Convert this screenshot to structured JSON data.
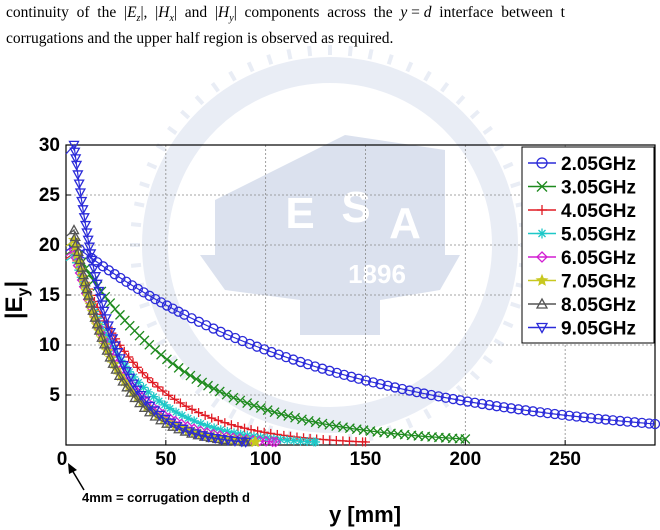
{
  "intro_text": {
    "line1": [
      {
        "t": "continuity  of  the  |",
        "i": false
      },
      {
        "t": "E",
        "i": true
      },
      {
        "t": "z",
        "i": true,
        "sub": true
      },
      {
        "t": "|,  |",
        "i": false
      },
      {
        "t": "H",
        "i": true
      },
      {
        "t": "x",
        "i": true,
        "sub": true
      },
      {
        "t": "|  and  |",
        "i": false
      },
      {
        "t": "H",
        "i": true
      },
      {
        "t": "y",
        "i": true,
        "sub": true
      },
      {
        "t": "|  components  across  the  ",
        "i": false
      },
      {
        "t": "y",
        "i": true
      },
      {
        "t": " = ",
        "i": false
      },
      {
        "t": "d",
        "i": true
      },
      {
        "t": "  interface  between  t",
        "i": false
      }
    ],
    "line2": "corrugations and the upper half region is observed as required."
  },
  "watermark": {
    "letters": [
      "E",
      "S",
      "A"
    ],
    "year": "1896",
    "colors": {
      "main": "#d5dcec",
      "light": "#e6eaf4"
    }
  },
  "chart_data": {
    "type": "line",
    "xlabel": "y [mm]",
    "ylabel": "|E_y|",
    "ylabel_main": "|E",
    "ylabel_sub": "y",
    "ylabel_end": "|",
    "xlim": [
      0,
      295
    ],
    "ylim": [
      0,
      30
    ],
    "xticks": [
      0,
      50,
      100,
      150,
      200,
      250
    ],
    "yticks": [
      5,
      10,
      15,
      20,
      25,
      30
    ],
    "grid": true,
    "legend_position": "top-right",
    "annotation": "4mm = corrugation depth d",
    "series": [
      {
        "name": "2.05GHz",
        "color": "#2b2bd9",
        "marker": "circle",
        "x_end": 295,
        "y_end": 2.1,
        "x_peak": 4,
        "y_peak": 20
      },
      {
        "name": "3.05GHz",
        "color": "#1e8a1e",
        "marker": "x",
        "x_end": 200,
        "y_end": 0.6,
        "x_peak": 4,
        "y_peak": 19.6
      },
      {
        "name": "4.05GHz",
        "color": "#e01b24",
        "marker": "plus",
        "x_end": 150,
        "y_end": 0.3,
        "x_peak": 4,
        "y_peak": 19.2
      },
      {
        "name": "5.05GHz",
        "color": "#1ec8c8",
        "marker": "asterisk",
        "x_end": 125,
        "y_end": 0.3,
        "x_peak": 4,
        "y_peak": 19.0
      },
      {
        "name": "6.05GHz",
        "color": "#d21ed2",
        "marker": "diamond",
        "x_end": 105,
        "y_end": 0.3,
        "x_peak": 4,
        "y_peak": 19.5
      },
      {
        "name": "7.05GHz",
        "color": "#c8c820",
        "marker": "star",
        "x_end": 95,
        "y_end": 0.3,
        "x_peak": 4,
        "y_peak": 20.5
      },
      {
        "name": "8.05GHz",
        "color": "#555555",
        "marker": "triangle-up",
        "x_end": 90,
        "y_end": 0.3,
        "x_peak": 4,
        "y_peak": 21.5
      },
      {
        "name": "9.05GHz",
        "color": "#2b2bd9",
        "marker": "triangle-down",
        "x_end": 90,
        "y_end": 0.3,
        "x_peak": 4,
        "y_peak": 30
      }
    ]
  }
}
